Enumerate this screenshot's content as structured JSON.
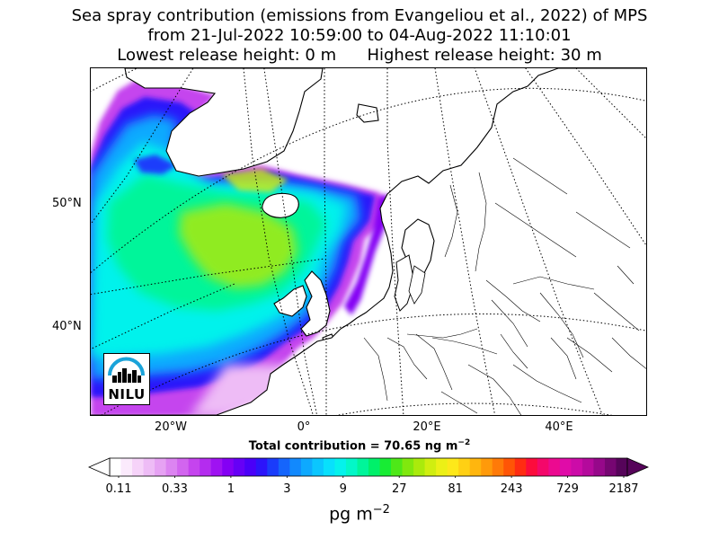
{
  "title": {
    "line1": "Sea spray contribution (emissions from Evangeliou et al., 2022) of MPS",
    "line2": "from 21-Jul-2022 10:59:00 to 04-Aug-2022 11:10:01",
    "line3": "Lowest release height: 0 m      Highest release height: 30 m"
  },
  "map": {
    "lat_labels": [
      "50°N",
      "40°N"
    ],
    "lon_labels": [
      "20°W",
      "0°",
      "20°E",
      "40°E"
    ]
  },
  "logo": {
    "text": "NILU",
    "accent_color": "#1aa3d9"
  },
  "total_contribution": {
    "label": "Total contribution = 70.65 ng m",
    "exponent": "−2"
  },
  "colorbar": {
    "ticks": [
      "0.11",
      "0.33",
      "1",
      "3",
      "9",
      "27",
      "81",
      "243",
      "729",
      "2187"
    ],
    "colors": [
      "#ffffff",
      "#fbeafc",
      "#f6d3f9",
      "#eebcf6",
      "#e6a2f3",
      "#dc84f1",
      "#d265ef",
      "#c544ee",
      "#b42cef",
      "#9f12f2",
      "#8400f4",
      "#6600f6",
      "#4a00f8",
      "#2c14fa",
      "#1a3cfb",
      "#1565fc",
      "#1289fd",
      "#0ea9fe",
      "#0bc6fe",
      "#08e0fc",
      "#05f2ec",
      "#03f7c8",
      "#00f59a",
      "#00f06a",
      "#18ec34",
      "#4ee818",
      "#80e80e",
      "#aaea0c",
      "#d0ee10",
      "#ecf016",
      "#fde81a",
      "#ffd014",
      "#ffb60e",
      "#ff9a0a",
      "#ff7a08",
      "#ff5506",
      "#ff2c12",
      "#fc0c3c",
      "#f4086a",
      "#ec0a90",
      "#e00ca8",
      "#cc0ca8",
      "#b40a9c",
      "#96088a",
      "#760672",
      "#56045a"
    ],
    "units_label": "pg m",
    "units_exponent": "−2"
  }
}
